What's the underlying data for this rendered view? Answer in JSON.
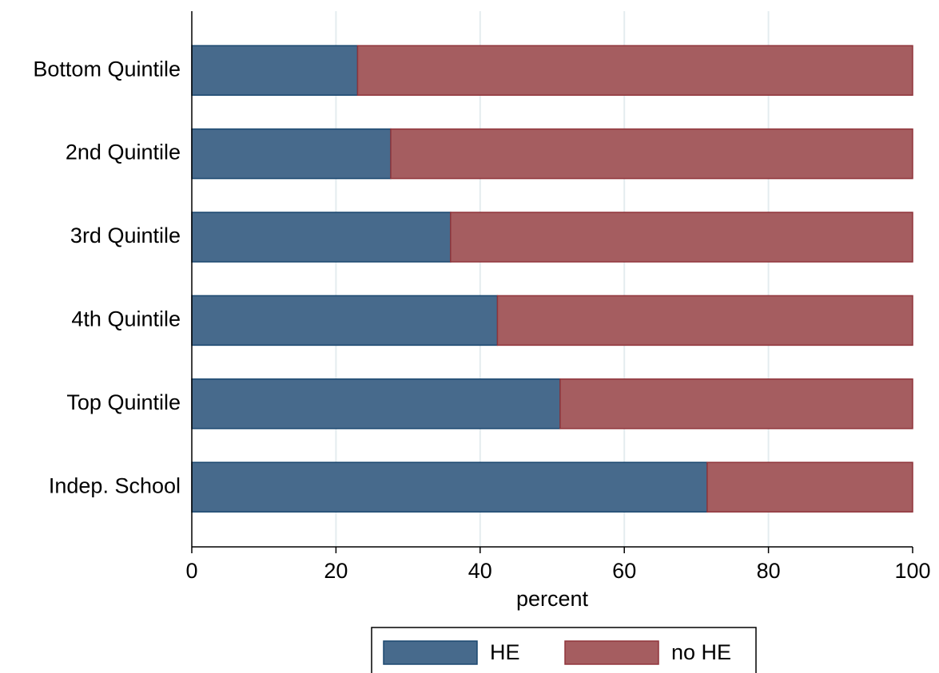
{
  "chart_data": {
    "type": "stacked-bar-horizontal",
    "x_label": "percent",
    "categories": [
      "Bottom Quintile",
      "2nd Quintile",
      "3rd Quintile",
      "4th Quintile",
      "Top Quintile",
      "Indep. School"
    ],
    "series": [
      {
        "name": "HE",
        "color": "#476a8c",
        "edge": "#1a476f",
        "values": [
          23.0,
          27.6,
          35.9,
          42.4,
          51.1,
          71.5
        ]
      },
      {
        "name": "no HE",
        "color": "#a55d60",
        "edge": "#90353b",
        "values": [
          77.0,
          72.4,
          64.1,
          57.6,
          48.9,
          28.5
        ]
      }
    ],
    "xlim": [
      0,
      100
    ],
    "xticks": [
      0,
      20,
      40,
      60,
      80,
      100
    ],
    "grid": true,
    "legend": "bottom"
  }
}
